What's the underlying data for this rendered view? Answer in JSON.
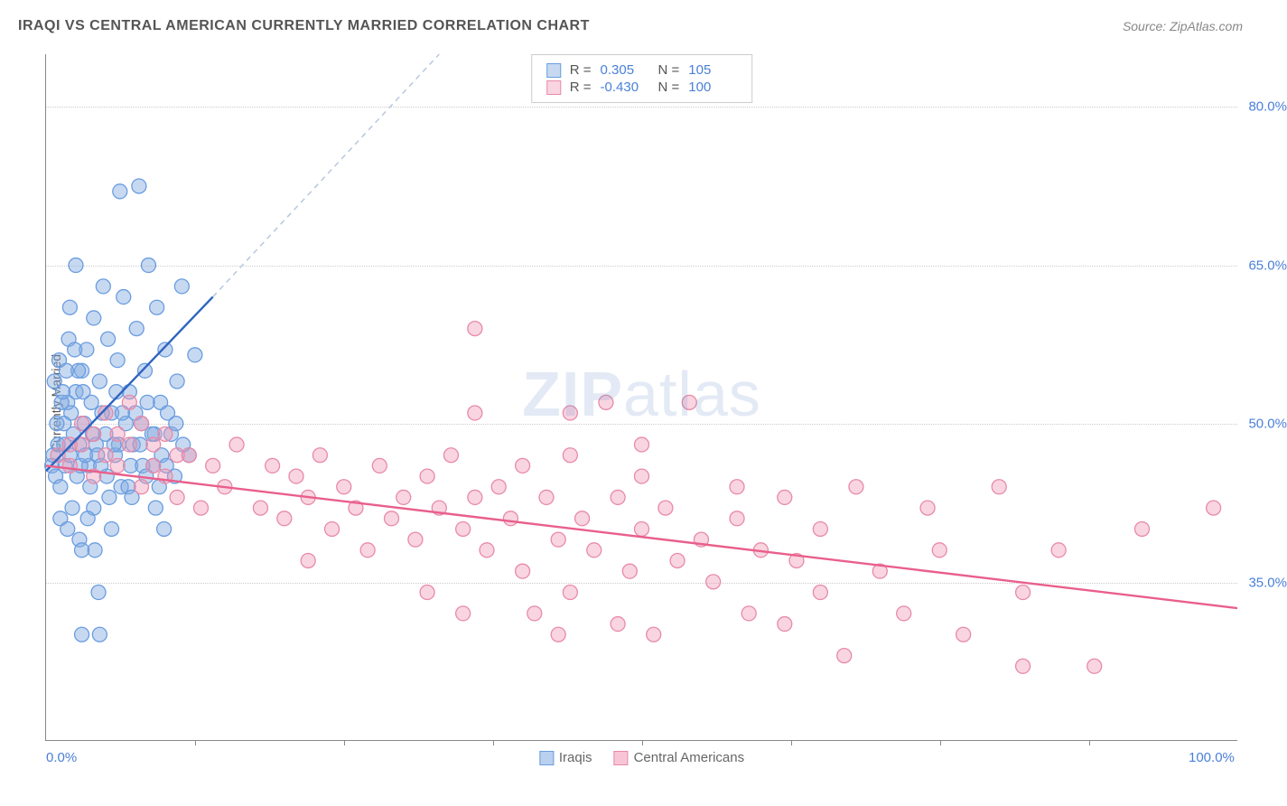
{
  "title": "IRAQI VS CENTRAL AMERICAN CURRENTLY MARRIED CORRELATION CHART",
  "source": "Source: ZipAtlas.com",
  "ylabel": "Currently Married",
  "watermark_a": "ZIP",
  "watermark_b": "atlas",
  "chart": {
    "type": "scatter",
    "background_color": "#ffffff",
    "grid_color": "#cccccc",
    "axis_color": "#888888",
    "text_color": "#555555",
    "tick_color": "#4a7fd8",
    "xlim": [
      0,
      100
    ],
    "ylim": [
      20,
      85
    ],
    "xticks": [
      {
        "pos": 0,
        "label": "0.0%",
        "show_label": true
      },
      {
        "pos": 50,
        "label": "",
        "show_label": false
      },
      {
        "pos": 100,
        "label": "100.0%",
        "show_label": true
      }
    ],
    "xtick_minor": [
      12.5,
      25,
      37.5,
      50,
      62.5,
      75,
      87.5
    ],
    "yticks": [
      {
        "pos": 35,
        "label": "35.0%"
      },
      {
        "pos": 50,
        "label": "50.0%"
      },
      {
        "pos": 65,
        "label": "65.0%"
      },
      {
        "pos": 80,
        "label": "80.0%"
      }
    ],
    "series": [
      {
        "name": "Iraqis",
        "fill": "rgba(130,170,225,0.45)",
        "stroke": "#6a9de0",
        "marker_r": 8,
        "trend_color": "#2f64c0",
        "trend_dash_color": "#b8c7de",
        "R_label": "R =",
        "R": "0.305",
        "N_label": "N =",
        "N": "105",
        "trend_solid": {
          "x1": 0,
          "y1": 45.5,
          "x2": 14,
          "y2": 62
        },
        "trend_dash": {
          "x1": 14,
          "y1": 62,
          "x2": 33,
          "y2": 85
        },
        "points": [
          [
            0.5,
            46
          ],
          [
            0.6,
            47
          ],
          [
            0.8,
            45
          ],
          [
            1,
            48
          ],
          [
            1.2,
            44
          ],
          [
            1.5,
            50
          ],
          [
            1.6,
            46
          ],
          [
            1.8,
            52
          ],
          [
            2,
            47
          ],
          [
            2.1,
            51
          ],
          [
            2.3,
            49
          ],
          [
            2.5,
            53
          ],
          [
            2.6,
            45
          ],
          [
            2.8,
            48
          ],
          [
            3,
            55
          ],
          [
            3.2,
            50
          ],
          [
            3.4,
            57
          ],
          [
            3.6,
            46
          ],
          [
            3.8,
            52
          ],
          [
            4,
            60
          ],
          [
            4.2,
            48
          ],
          [
            4.5,
            54
          ],
          [
            4.8,
            63
          ],
          [
            5,
            49
          ],
          [
            5.2,
            58
          ],
          [
            5.5,
            51
          ],
          [
            5.8,
            47
          ],
          [
            6,
            56
          ],
          [
            6.3,
            44
          ],
          [
            6.5,
            62
          ],
          [
            7,
            53
          ],
          [
            7.3,
            48
          ],
          [
            7.6,
            59
          ],
          [
            8,
            50
          ],
          [
            8.3,
            55
          ],
          [
            8.6,
            65
          ],
          [
            9,
            46
          ],
          [
            9.3,
            61
          ],
          [
            9.6,
            52
          ],
          [
            10,
            57
          ],
          [
            10.5,
            49
          ],
          [
            11,
            54
          ],
          [
            11.4,
            63
          ],
          [
            12,
            47
          ],
          [
            12.5,
            56.5
          ],
          [
            4,
            42
          ],
          [
            5.5,
            40
          ],
          [
            6.2,
            72
          ],
          [
            7.8,
            72.5
          ],
          [
            2.5,
            65
          ],
          [
            3,
            30
          ],
          [
            4.5,
            30
          ],
          [
            1.2,
            41
          ],
          [
            1.8,
            40
          ],
          [
            2.2,
            42
          ],
          [
            0.7,
            54
          ],
          [
            1.1,
            56
          ],
          [
            1.9,
            58
          ],
          [
            0.9,
            50
          ],
          [
            1.3,
            52
          ],
          [
            2.7,
            55
          ],
          [
            3.1,
            53
          ],
          [
            3.9,
            49
          ],
          [
            4.7,
            51
          ],
          [
            5.1,
            45
          ],
          [
            5.9,
            53
          ],
          [
            6.7,
            50
          ],
          [
            7.1,
            46
          ],
          [
            7.9,
            48
          ],
          [
            8.5,
            52
          ],
          [
            9.1,
            49
          ],
          [
            9.7,
            47
          ],
          [
            10.2,
            51
          ],
          [
            10.8,
            45
          ],
          [
            11.5,
            48
          ],
          [
            1.5,
            48
          ],
          [
            2.9,
            46
          ],
          [
            3.7,
            44
          ],
          [
            4.3,
            47
          ],
          [
            5.3,
            43
          ],
          [
            6.1,
            48
          ],
          [
            6.9,
            44
          ],
          [
            7.5,
            51
          ],
          [
            8.1,
            46
          ],
          [
            8.9,
            49
          ],
          [
            9.5,
            44
          ],
          [
            10.1,
            46
          ],
          [
            10.9,
            50
          ],
          [
            2,
            61
          ],
          [
            2.8,
            39
          ],
          [
            3.5,
            41
          ],
          [
            4.1,
            38
          ],
          [
            1.4,
            53
          ],
          [
            1.7,
            55
          ],
          [
            2.4,
            57
          ],
          [
            3.3,
            47
          ],
          [
            4.6,
            46
          ],
          [
            5.7,
            48
          ],
          [
            6.4,
            51
          ],
          [
            7.2,
            43
          ],
          [
            8.4,
            45
          ],
          [
            9.2,
            42
          ],
          [
            9.9,
            40
          ],
          [
            4.4,
            34
          ],
          [
            3,
            38
          ]
        ]
      },
      {
        "name": "Central Americans",
        "fill": "rgba(240,150,180,0.40)",
        "stroke": "#e88aa8",
        "marker_r": 8,
        "trend_color": "#e95f8b",
        "R_label": "R =",
        "R": "-0.430",
        "N_label": "N =",
        "N": "100",
        "trend_solid": {
          "x1": 0,
          "y1": 46,
          "x2": 100,
          "y2": 32.5
        },
        "points": [
          [
            1,
            47
          ],
          [
            2,
            46
          ],
          [
            3,
            48
          ],
          [
            4,
            45
          ],
          [
            5,
            47
          ],
          [
            6,
            46
          ],
          [
            7,
            48
          ],
          [
            8,
            44
          ],
          [
            9,
            46
          ],
          [
            10,
            45
          ],
          [
            11,
            43
          ],
          [
            12,
            47
          ],
          [
            13,
            42
          ],
          [
            14,
            46
          ],
          [
            15,
            44
          ],
          [
            16,
            48
          ],
          [
            18,
            42
          ],
          [
            19,
            46
          ],
          [
            20,
            41
          ],
          [
            21,
            45
          ],
          [
            22,
            43
          ],
          [
            22,
            37
          ],
          [
            23,
            47
          ],
          [
            24,
            40
          ],
          [
            25,
            44
          ],
          [
            26,
            42
          ],
          [
            27,
            38
          ],
          [
            28,
            46
          ],
          [
            29,
            41
          ],
          [
            30,
            43
          ],
          [
            31,
            39
          ],
          [
            32,
            45
          ],
          [
            32,
            34
          ],
          [
            33,
            42
          ],
          [
            34,
            47
          ],
          [
            35,
            40
          ],
          [
            35,
            32
          ],
          [
            36,
            51
          ],
          [
            36,
            43
          ],
          [
            37,
            38
          ],
          [
            38,
            44
          ],
          [
            39,
            41
          ],
          [
            40,
            36
          ],
          [
            40,
            46
          ],
          [
            41,
            32
          ],
          [
            42,
            43
          ],
          [
            43,
            39
          ],
          [
            43,
            30
          ],
          [
            44,
            47
          ],
          [
            44,
            34
          ],
          [
            45,
            41
          ],
          [
            46,
            38
          ],
          [
            47,
            52
          ],
          [
            48,
            43
          ],
          [
            48,
            31
          ],
          [
            49,
            36
          ],
          [
            50,
            40
          ],
          [
            50,
            45
          ],
          [
            51,
            30
          ],
          [
            52,
            42
          ],
          [
            53,
            37
          ],
          [
            54,
            52
          ],
          [
            55,
            39
          ],
          [
            56,
            35
          ],
          [
            58,
            41
          ],
          [
            58,
            44
          ],
          [
            59,
            32
          ],
          [
            60,
            38
          ],
          [
            62,
            43
          ],
          [
            62,
            31
          ],
          [
            63,
            37
          ],
          [
            65,
            40
          ],
          [
            65,
            34
          ],
          [
            67,
            28
          ],
          [
            68,
            44
          ],
          [
            70,
            36
          ],
          [
            72,
            32
          ],
          [
            74,
            42
          ],
          [
            75,
            38
          ],
          [
            77,
            30
          ],
          [
            80,
            44
          ],
          [
            82,
            34
          ],
          [
            82,
            27
          ],
          [
            85,
            38
          ],
          [
            88,
            27
          ],
          [
            92,
            40
          ],
          [
            36,
            59
          ],
          [
            44,
            51
          ],
          [
            50,
            48
          ],
          [
            2,
            48
          ],
          [
            3,
            50
          ],
          [
            4,
            49
          ],
          [
            5,
            51
          ],
          [
            6,
            49
          ],
          [
            7,
            52
          ],
          [
            8,
            50
          ],
          [
            9,
            48
          ],
          [
            10,
            49
          ],
          [
            11,
            47
          ],
          [
            98,
            42
          ]
        ]
      }
    ]
  },
  "legend_bottom": [
    {
      "label": "Iraqis",
      "fill": "rgba(130,170,225,0.55)",
      "stroke": "#6a9de0"
    },
    {
      "label": "Central Americans",
      "fill": "rgba(240,150,180,0.55)",
      "stroke": "#e88aa8"
    }
  ]
}
